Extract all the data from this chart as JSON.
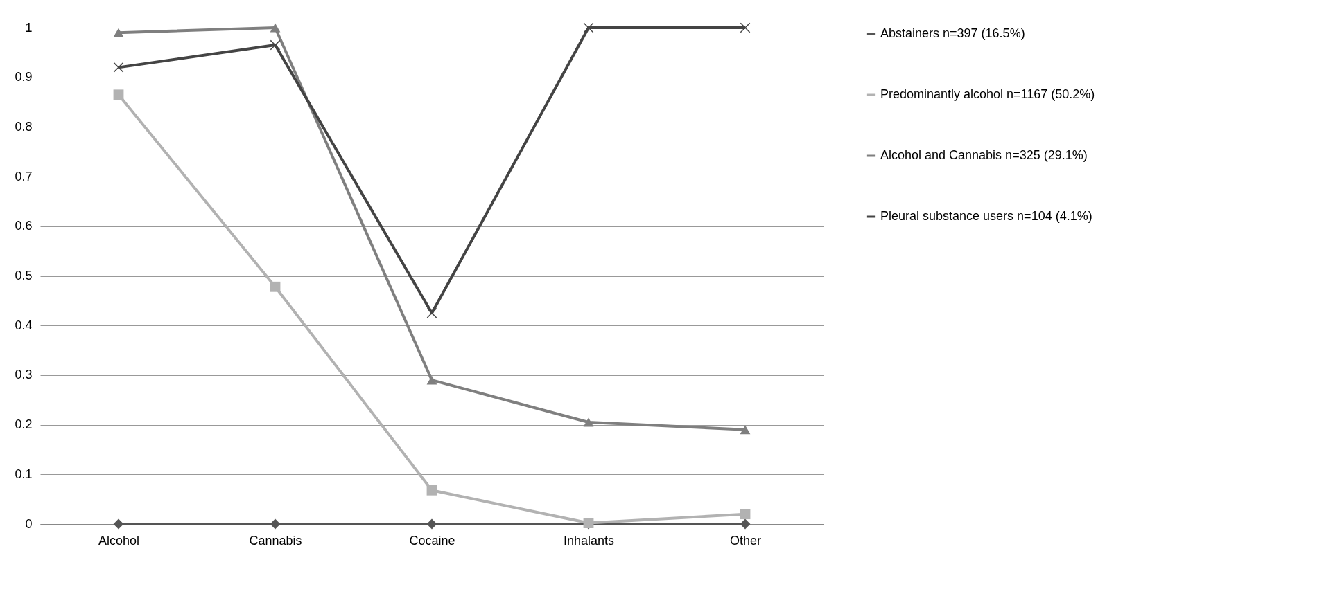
{
  "chart_data": {
    "type": "line",
    "categories": [
      "Alcohol",
      "Cannabis",
      "Cocaine",
      "Inhalants",
      "Other"
    ],
    "series": [
      {
        "name": "Abstainers n=397 (16.5%)",
        "color": "#555555",
        "marker": "diamond",
        "values": [
          0,
          0,
          0,
          0,
          0
        ]
      },
      {
        "name": "Predominantly alcohol n=1167 (50.2%)",
        "color": "#b2b2b2",
        "marker": "square",
        "values": [
          0.865,
          0.478,
          0.068,
          0.002,
          0.02
        ]
      },
      {
        "name": "Alcohol and Cannabis n=325 (29.1%)",
        "color": "#7f7f7f",
        "marker": "triangle",
        "values": [
          0.99,
          1.0,
          0.29,
          0.205,
          0.19
        ]
      },
      {
        "name": "Pleural substance users n=104 (4.1%)",
        "color": "#444444",
        "marker": "cross",
        "values": [
          0.92,
          0.965,
          0.425,
          1.0,
          1.0
        ]
      }
    ],
    "ylim": [
      0,
      1
    ],
    "yticks": [
      0,
      0.1,
      0.2,
      0.3,
      0.4,
      0.5,
      0.6,
      0.7,
      0.8,
      0.9,
      1
    ],
    "grid": "y",
    "legend": "right"
  }
}
